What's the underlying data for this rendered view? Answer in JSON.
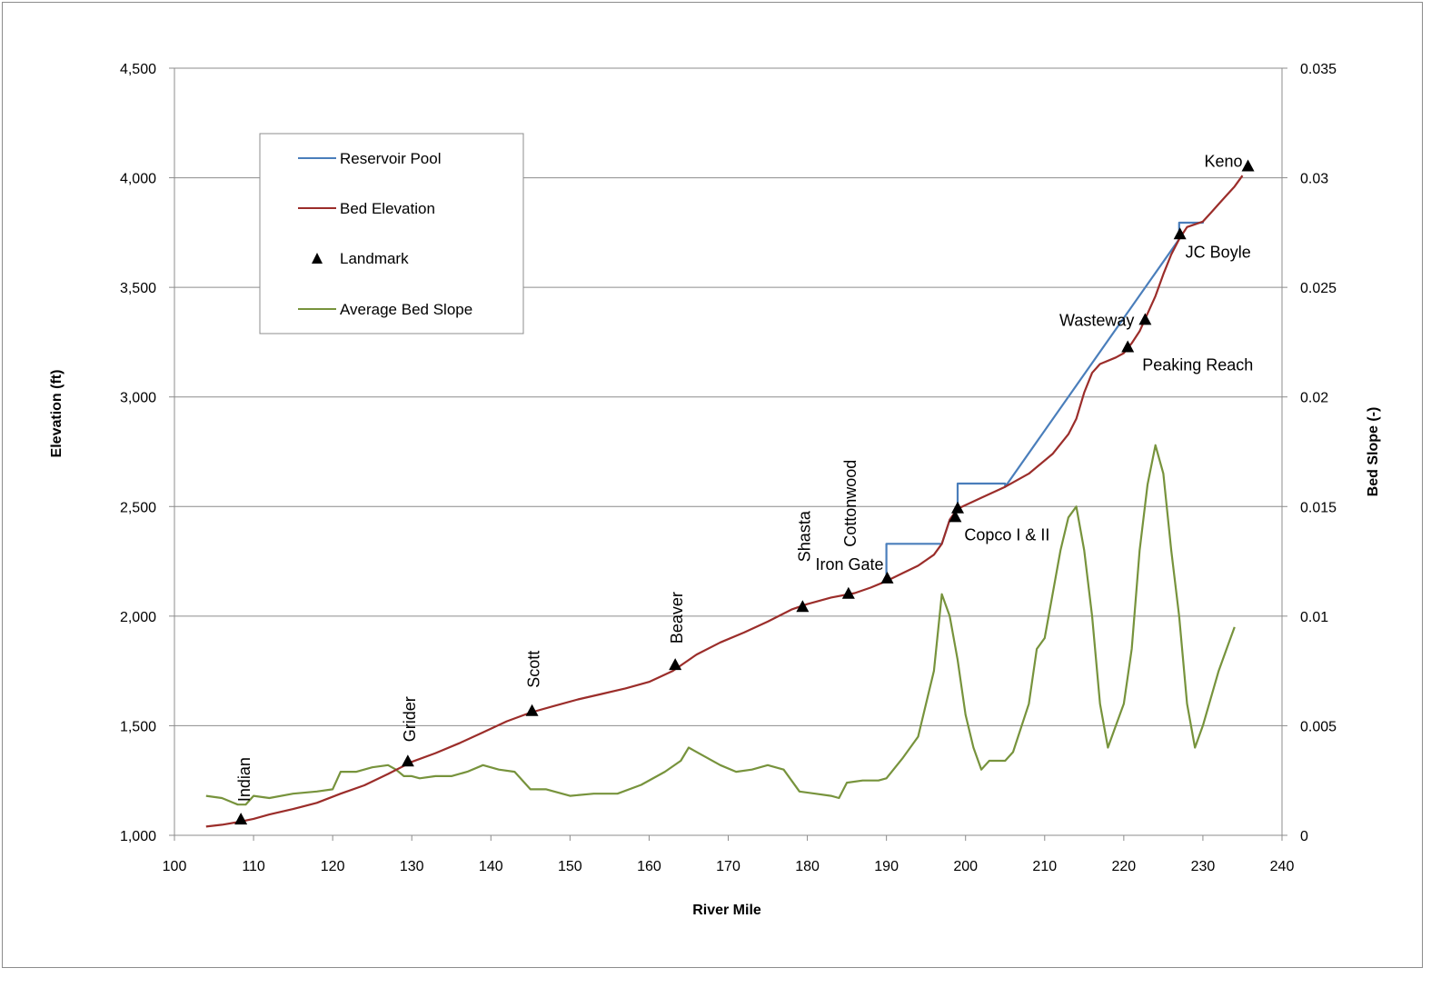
{
  "chart_data": {
    "type": "line",
    "xlabel": "River Mile",
    "ylabel": "Elevation (ft)",
    "y2label": "Bed Slope (-)",
    "xlim": [
      100,
      240
    ],
    "ylim": [
      1000,
      4500
    ],
    "y2lim": [
      0,
      0.035
    ],
    "x_ticks": [
      "100",
      "110",
      "120",
      "130",
      "140",
      "150",
      "160",
      "170",
      "180",
      "190",
      "200",
      "210",
      "220",
      "230",
      "240"
    ],
    "y_ticks": [
      "1,000",
      "1,500",
      "2,000",
      "2,500",
      "3,000",
      "3,500",
      "4,000",
      "4,500"
    ],
    "y2_ticks": [
      "0",
      "0.005",
      "0.01",
      "0.015",
      "0.02",
      "0.025",
      "0.03",
      "0.035"
    ],
    "grid": "horizontal major",
    "legend": {
      "position": "upper-left inside plot",
      "entries": [
        "Reservoir Pool",
        "Bed Elevation",
        "Landmark",
        "Average Bed Slope"
      ]
    },
    "colors": {
      "reservoir_pool": "#4a7ebb",
      "bed_elevation": "#9b2d2a",
      "landmark": "#000000",
      "bed_slope": "#77933c",
      "grid": "#8c8c8c"
    },
    "series": [
      {
        "name": "Bed Elevation",
        "axis": "left",
        "points": [
          [
            104,
            1040
          ],
          [
            106,
            1048
          ],
          [
            108,
            1060
          ],
          [
            110,
            1075
          ],
          [
            112,
            1095
          ],
          [
            115,
            1120
          ],
          [
            118,
            1148
          ],
          [
            121,
            1190
          ],
          [
            124,
            1228
          ],
          [
            127,
            1280
          ],
          [
            130,
            1335
          ],
          [
            133,
            1375
          ],
          [
            136,
            1420
          ],
          [
            139,
            1470
          ],
          [
            142,
            1520
          ],
          [
            145,
            1560
          ],
          [
            148,
            1590
          ],
          [
            151,
            1620
          ],
          [
            154,
            1645
          ],
          [
            157,
            1670
          ],
          [
            160,
            1700
          ],
          [
            163,
            1750
          ],
          [
            166,
            1825
          ],
          [
            169,
            1880
          ],
          [
            172,
            1925
          ],
          [
            175,
            1975
          ],
          [
            178,
            2030
          ],
          [
            180,
            2055
          ],
          [
            183,
            2085
          ],
          [
            186,
            2105
          ],
          [
            188,
            2130
          ],
          [
            190,
            2160
          ],
          [
            192,
            2195
          ],
          [
            194,
            2230
          ],
          [
            196,
            2280
          ],
          [
            197,
            2330
          ],
          [
            198,
            2440
          ],
          [
            199,
            2490
          ],
          [
            202,
            2540
          ],
          [
            205,
            2590
          ],
          [
            208,
            2650
          ],
          [
            211,
            2740
          ],
          [
            213,
            2830
          ],
          [
            214,
            2900
          ],
          [
            215,
            3020
          ],
          [
            216,
            3110
          ],
          [
            217,
            3150
          ],
          [
            219,
            3180
          ],
          [
            220,
            3200
          ],
          [
            221,
            3245
          ],
          [
            222,
            3300
          ],
          [
            223,
            3380
          ],
          [
            224,
            3460
          ],
          [
            225,
            3560
          ],
          [
            226,
            3650
          ],
          [
            227,
            3720
          ],
          [
            228,
            3775
          ],
          [
            230,
            3800
          ],
          [
            231,
            3840
          ],
          [
            232,
            3880
          ],
          [
            233,
            3920
          ],
          [
            234,
            3960
          ],
          [
            235,
            4010
          ]
        ]
      },
      {
        "name": "Reservoir Pool",
        "axis": "left",
        "points": [
          [
            190,
            2160
          ],
          [
            190,
            2330
          ],
          [
            197,
            2330
          ],
          [
            198,
            2440
          ],
          [
            199,
            2490
          ],
          [
            199,
            2605
          ],
          [
            205,
            2605
          ],
          [
            205,
            2590
          ],
          [
            227,
            3720
          ],
          [
            227,
            3795
          ],
          [
            230,
            3795
          ],
          [
            230,
            3800
          ]
        ]
      },
      {
        "name": "Average Bed Slope",
        "axis": "right",
        "points": [
          [
            104,
            0.0018
          ],
          [
            106,
            0.0017
          ],
          [
            108,
            0.0014
          ],
          [
            109,
            0.0014
          ],
          [
            110,
            0.0018
          ],
          [
            112,
            0.0017
          ],
          [
            115,
            0.0019
          ],
          [
            118,
            0.002
          ],
          [
            120,
            0.0021
          ],
          [
            121,
            0.0029
          ],
          [
            123,
            0.0029
          ],
          [
            125,
            0.0031
          ],
          [
            127,
            0.0032
          ],
          [
            128,
            0.003
          ],
          [
            129,
            0.0027
          ],
          [
            130,
            0.0027
          ],
          [
            131,
            0.0026
          ],
          [
            133,
            0.0027
          ],
          [
            135,
            0.0027
          ],
          [
            137,
            0.0029
          ],
          [
            139,
            0.0032
          ],
          [
            141,
            0.003
          ],
          [
            143,
            0.0029
          ],
          [
            145,
            0.0021
          ],
          [
            147,
            0.0021
          ],
          [
            150,
            0.0018
          ],
          [
            153,
            0.0019
          ],
          [
            156,
            0.0019
          ],
          [
            159,
            0.0023
          ],
          [
            162,
            0.0029
          ],
          [
            164,
            0.0034
          ],
          [
            165,
            0.004
          ],
          [
            167,
            0.0036
          ],
          [
            169,
            0.0032
          ],
          [
            171,
            0.0029
          ],
          [
            173,
            0.003
          ],
          [
            175,
            0.0032
          ],
          [
            177,
            0.003
          ],
          [
            179,
            0.002
          ],
          [
            181,
            0.0019
          ],
          [
            183,
            0.0018
          ],
          [
            184,
            0.0017
          ],
          [
            185,
            0.0024
          ],
          [
            187,
            0.0025
          ],
          [
            189,
            0.0025
          ],
          [
            190,
            0.0026
          ],
          [
            192,
            0.0035
          ],
          [
            194,
            0.0045
          ],
          [
            196,
            0.0075
          ],
          [
            197,
            0.011
          ],
          [
            198,
            0.01
          ],
          [
            199,
            0.008
          ],
          [
            200,
            0.0055
          ],
          [
            201,
            0.004
          ],
          [
            202,
            0.003
          ],
          [
            203,
            0.0034
          ],
          [
            205,
            0.0034
          ],
          [
            206,
            0.0038
          ],
          [
            208,
            0.006
          ],
          [
            209,
            0.0085
          ],
          [
            210,
            0.009
          ],
          [
            212,
            0.013
          ],
          [
            213,
            0.0145
          ],
          [
            214,
            0.015
          ],
          [
            215,
            0.013
          ],
          [
            216,
            0.01
          ],
          [
            217,
            0.006
          ],
          [
            218,
            0.004
          ],
          [
            219,
            0.005
          ],
          [
            220,
            0.006
          ],
          [
            221,
            0.0085
          ],
          [
            222,
            0.013
          ],
          [
            223,
            0.016
          ],
          [
            224,
            0.0178
          ],
          [
            225,
            0.0165
          ],
          [
            226,
            0.013
          ],
          [
            227,
            0.01
          ],
          [
            228,
            0.006
          ],
          [
            229,
            0.004
          ],
          [
            230,
            0.005
          ],
          [
            232,
            0.0075
          ],
          [
            233,
            0.0085
          ],
          [
            234,
            0.0095
          ]
        ]
      }
    ],
    "landmarks": [
      {
        "name": "Indian",
        "x": 108.4,
        "y": 1070,
        "label_orient": "vertical"
      },
      {
        "name": "Grider",
        "x": 129.5,
        "y": 1335,
        "label_orient": "vertical"
      },
      {
        "name": "Scott",
        "x": 145.2,
        "y": 1565,
        "label_orient": "vertical"
      },
      {
        "name": "Beaver",
        "x": 163.3,
        "y": 1775,
        "label_orient": "vertical"
      },
      {
        "name": "Shasta",
        "x": 179.4,
        "y": 2040,
        "label_orient": "vertical"
      },
      {
        "name": "Cottonwood",
        "x": 185.2,
        "y": 2100,
        "label_orient": "vertical"
      },
      {
        "name": "Iron Gate",
        "x": 190.1,
        "y": 2170,
        "label_orient": "horizontal"
      },
      {
        "name": "Copco I & II",
        "x": 198.7,
        "y": 2450,
        "label_orient": "horizontal"
      },
      {
        "name": "Peaking Reach",
        "x": 220.5,
        "y": 3225,
        "label_orient": "horizontal"
      },
      {
        "name": "Wasteway",
        "x": 222.7,
        "y": 3350,
        "label_orient": "horizontal"
      },
      {
        "name": "JC Boyle",
        "x": 227.1,
        "y": 3740,
        "label_orient": "horizontal"
      },
      {
        "name": "Keno",
        "x": 235.7,
        "y": 4050,
        "label_orient": "horizontal"
      }
    ],
    "extra_landmarks": [
      {
        "x": 199.0,
        "y": 2490
      }
    ]
  }
}
